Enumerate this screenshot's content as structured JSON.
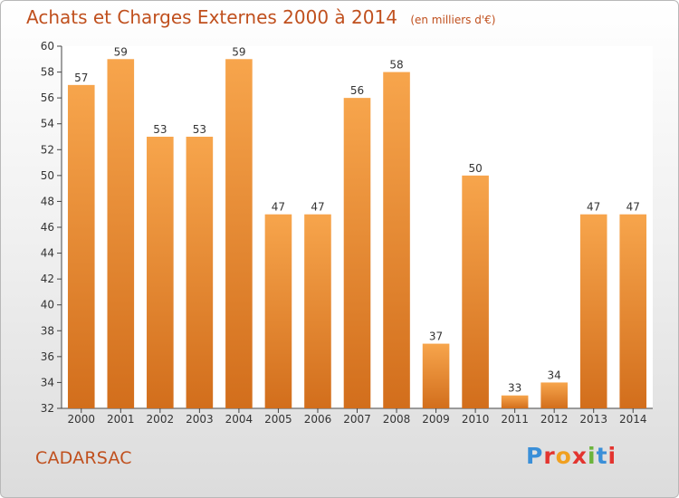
{
  "header": {
    "title": "Achats et Charges Externes 2000 à 2014",
    "unit": "(en milliers d'€)"
  },
  "footer": {
    "commune": "CADARSAC",
    "logo_text": "Proxiti"
  },
  "colors": {
    "bar_light": "#f7a54c",
    "bar_dark": "#d26e1c",
    "title": "#c0501e",
    "logo": [
      "#3a8fd8",
      "#e3342f",
      "#f0a020",
      "#e3342f",
      "#6bb43c",
      "#3a8fd8",
      "#e3342f"
    ]
  },
  "chart_data": {
    "type": "bar",
    "title": "Achats et Charges Externes 2000 à 2014",
    "xlabel": "",
    "ylabel": "",
    "ylim": [
      32,
      60
    ],
    "ytick_step": 2,
    "grid": false,
    "categories": [
      "2000",
      "2001",
      "2002",
      "2003",
      "2004",
      "2005",
      "2006",
      "2007",
      "2008",
      "2009",
      "2010",
      "2011",
      "2012",
      "2013",
      "2014"
    ],
    "values": [
      57,
      59,
      53,
      53,
      59,
      47,
      47,
      56,
      58,
      37,
      50,
      33,
      34,
      47,
      47
    ]
  }
}
